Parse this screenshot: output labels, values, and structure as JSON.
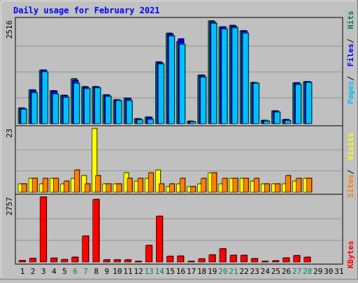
{
  "chart_data": {
    "type": "bar",
    "title": "Daily usage for February 2021",
    "categories": [
      "1",
      "2",
      "3",
      "4",
      "5",
      "6",
      "7",
      "8",
      "9",
      "10",
      "11",
      "12",
      "13",
      "14",
      "15",
      "16",
      "17",
      "18",
      "19",
      "20",
      "21",
      "22",
      "23",
      "24",
      "25",
      "26",
      "27",
      "28",
      "29",
      "30",
      "31"
    ],
    "weekend_days": [
      "6",
      "7",
      "13",
      "14",
      "20",
      "21",
      "27",
      "28"
    ],
    "panels": [
      {
        "id": "hits",
        "ymax_label": "2516",
        "ymax": 2516,
        "series": [
          {
            "name": "Hits",
            "color": "#008040",
            "values": [
              380,
              820,
              1300,
              800,
              690,
              1090,
              900,
              900,
              700,
              580,
              620,
              120,
              160,
              1500,
              2200,
              2000,
              60,
              1180,
              2500,
              2350,
              2390,
              2260,
              1000,
              80,
              310,
              100,
              990,
              1020,
              null,
              null,
              null
            ]
          },
          {
            "name": "Files",
            "color": "#0000ff",
            "values": [
              370,
              810,
              1300,
              790,
              680,
              1050,
              880,
              890,
              690,
              570,
              610,
              110,
              150,
              1480,
              2180,
              2060,
              50,
              1170,
              2470,
              2350,
              2370,
              2250,
              990,
              70,
              300,
              95,
              990,
              1020,
              null,
              null,
              null
            ]
          },
          {
            "name": "Pages",
            "color": "#00c0ff",
            "values": [
              350,
              750,
              1260,
              720,
              640,
              980,
              850,
              870,
              660,
              560,
              560,
              90,
              100,
              1450,
              2130,
              1930,
              40,
              1130,
              2440,
              2300,
              2330,
              2200,
              980,
              60,
              280,
              70,
              950,
              1000,
              null,
              null,
              null
            ]
          }
        ]
      },
      {
        "id": "visits",
        "ymax_label": "23",
        "ymax": 23,
        "series": [
          {
            "name": "Visits",
            "color": "#ffff00",
            "values": [
              3,
              5,
              3,
              5,
              3,
              5,
              6,
              23,
              3,
              3,
              7,
              4,
              5,
              8,
              2,
              3,
              2,
              3,
              7,
              3,
              5,
              5,
              4,
              3,
              3,
              3,
              4,
              5,
              null,
              null,
              null
            ]
          },
          {
            "name": "Sites",
            "color": "#ff8000",
            "values": [
              3,
              5,
              5,
              5,
              4,
              8,
              3,
              6,
              3,
              3,
              5,
              5,
              7,
              3,
              3,
              5,
              2,
              5,
              7,
              5,
              5,
              5,
              5,
              3,
              3,
              6,
              5,
              5,
              null,
              null,
              null
            ]
          }
        ]
      },
      {
        "id": "kbytes",
        "ymax_label": "2757",
        "ymax": 2757,
        "series": [
          {
            "name": "KBytes",
            "color": "#ff0000",
            "values": [
              60,
              150,
              2757,
              160,
              100,
              200,
              1100,
              2650,
              90,
              90,
              90,
              20,
              700,
              1940,
              240,
              250,
              20,
              130,
              300,
              560,
              280,
              280,
              140,
              20,
              50,
              170,
              270,
              200,
              null,
              null,
              null
            ]
          }
        ]
      }
    ],
    "grid": true
  }
}
